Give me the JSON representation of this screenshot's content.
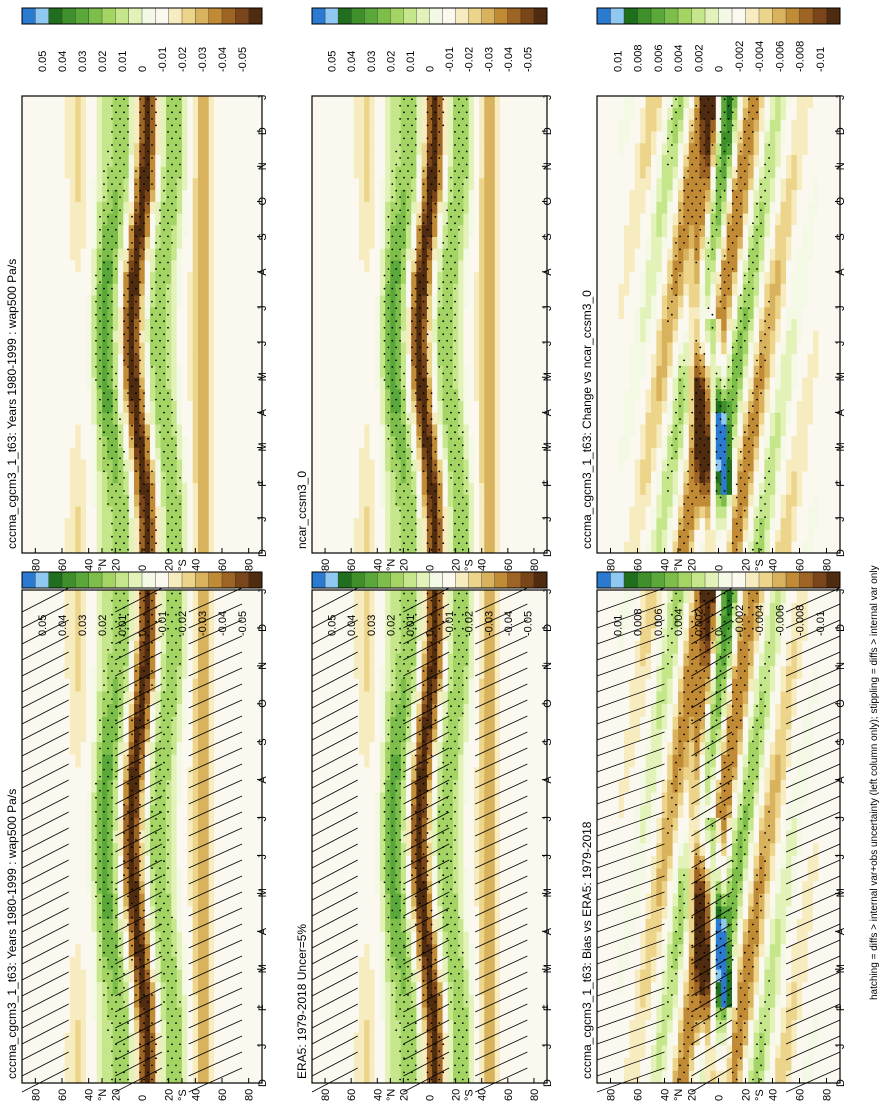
{
  "figure": {
    "footnote": "hatching = diffs > internal var+obs uncertainty (left column only); stippling = diffs > internal var only",
    "months": [
      "D",
      "J",
      "F",
      "M",
      "A",
      "M",
      "J",
      "J",
      "A",
      "S",
      "O",
      "N",
      "D",
      "J"
    ],
    "lat_ticks": [
      "80",
      "60",
      "40",
      "°N",
      "20",
      "0",
      "20",
      "°S",
      "40",
      "60",
      "80"
    ],
    "colors": [
      "#2a7ad1",
      "#8fc9f2",
      "#1f6f1f",
      "#3f8f2a",
      "#5aa83a",
      "#7dbd4a",
      "#a3d464",
      "#c6e68c",
      "#e2f2b8",
      "#f4f9e6",
      "#fbf8ef",
      "#f7ecc0",
      "#ecd48a",
      "#d9b25e",
      "#c18a35",
      "#9e6424",
      "#7a4518",
      "#4f2c10"
    ]
  },
  "chart_data": [
    {
      "type": "heatmap",
      "panel": "top-left",
      "title": "cccma_cgcm3_1_t63: Years 1980-1999 : wap500 Pa/s",
      "x": [
        "D",
        "J",
        "F",
        "M",
        "A",
        "M",
        "J",
        "J",
        "A",
        "S",
        "O",
        "N",
        "D",
        "J"
      ],
      "y_range": [
        -90,
        90
      ],
      "colorbar_labels": [
        "0.05",
        "0.04",
        "0.03",
        "0.02",
        "0.01",
        "0",
        "-0.01",
        "-0.02",
        "-0.03",
        "-0.04",
        "-0.05"
      ],
      "hatching": true
    },
    {
      "type": "heatmap",
      "panel": "top-right",
      "title": "cccma_cgcm3_1_t63: Years 1980-1999 : wap500 Pa/s",
      "x": [
        "D",
        "J",
        "F",
        "M",
        "A",
        "M",
        "J",
        "J",
        "A",
        "S",
        "O",
        "N",
        "D",
        "J"
      ],
      "y_range": [
        -90,
        90
      ],
      "colorbar_labels": [
        "0.05",
        "0.04",
        "0.03",
        "0.02",
        "0.01",
        "0",
        "-0.01",
        "-0.02",
        "-0.03",
        "-0.04",
        "-0.05"
      ],
      "hatching": false
    },
    {
      "type": "heatmap",
      "panel": "middle-left",
      "title": "ERA5: 1979-2018 Uncer=5%",
      "x": [
        "D",
        "J",
        "F",
        "M",
        "A",
        "M",
        "J",
        "J",
        "A",
        "S",
        "O",
        "N",
        "D",
        "J"
      ],
      "y_range": [
        -90,
        90
      ],
      "colorbar_labels": [
        "0.05",
        "0.04",
        "0.03",
        "0.02",
        "0.01",
        "0",
        "-0.01",
        "-0.02",
        "-0.03",
        "-0.04",
        "-0.05"
      ],
      "hatching": true
    },
    {
      "type": "heatmap",
      "panel": "middle-right",
      "title": "ncar_ccsm3_0",
      "x": [
        "D",
        "J",
        "F",
        "M",
        "A",
        "M",
        "J",
        "J",
        "A",
        "S",
        "O",
        "N",
        "D",
        "J"
      ],
      "y_range": [
        -90,
        90
      ],
      "colorbar_labels": [
        "0.05",
        "0.04",
        "0.03",
        "0.02",
        "0.01",
        "0",
        "-0.01",
        "-0.02",
        "-0.03",
        "-0.04",
        "-0.05"
      ],
      "hatching": false
    },
    {
      "type": "heatmap",
      "panel": "bottom-left",
      "title": "cccma_cgcm3_1_t63: Bias vs ERA5: 1979-2018",
      "x": [
        "D",
        "J",
        "F",
        "M",
        "A",
        "M",
        "J",
        "J",
        "A",
        "S",
        "O",
        "N",
        "D",
        "J"
      ],
      "y_range": [
        -90,
        90
      ],
      "colorbar_labels": [
        "0.01",
        "0.008",
        "0.006",
        "0.004",
        "0.002",
        "0",
        "-0.002",
        "-0.004",
        "-0.006",
        "-0.008",
        "-0.01"
      ],
      "hatching": true
    },
    {
      "type": "heatmap",
      "panel": "bottom-right",
      "title": "cccma_cgcm3_1_t63: Change vs ncar_ccsm3_0",
      "x": [
        "D",
        "J",
        "F",
        "M",
        "A",
        "M",
        "J",
        "J",
        "A",
        "S",
        "O",
        "N",
        "D",
        "J"
      ],
      "y_range": [
        -90,
        90
      ],
      "colorbar_labels": [
        "0.01",
        "0.008",
        "0.006",
        "0.004",
        "0.002",
        "0",
        "-0.002",
        "-0.004",
        "-0.006",
        "-0.008",
        "-0.01"
      ],
      "hatching": false
    }
  ]
}
